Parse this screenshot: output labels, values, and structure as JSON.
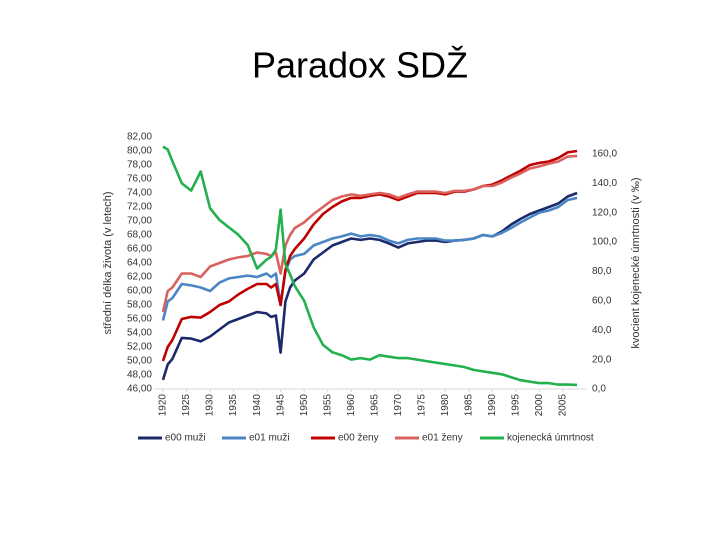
{
  "title": "Paradox SDŽ",
  "chart_data": {
    "type": "line",
    "ylabel": "střední délka života (v letech)",
    "y2label": "kvocient kojenecké úmrtnosti (v ‰)",
    "x": [
      1920,
      1921,
      1922,
      1924,
      1926,
      1928,
      1930,
      1932,
      1934,
      1936,
      1938,
      1940,
      1942,
      1943,
      1944,
      1945,
      1946,
      1947,
      1948,
      1950,
      1952,
      1954,
      1956,
      1958,
      1960,
      1962,
      1964,
      1966,
      1968,
      1970,
      1972,
      1974,
      1976,
      1978,
      1980,
      1982,
      1984,
      1986,
      1988,
      1990,
      1992,
      1994,
      1996,
      1998,
      2000,
      2002,
      2004,
      2006,
      2008
    ],
    "xlim": [
      1918,
      2010
    ],
    "xticks": [
      1920,
      1925,
      1930,
      1935,
      1940,
      1945,
      1950,
      1955,
      1960,
      1965,
      1970,
      1975,
      1980,
      1985,
      1990,
      1995,
      2000,
      2005
    ],
    "ylim": [
      46,
      82
    ],
    "yticks": [
      {
        "value": 46,
        "label": "46,00"
      },
      {
        "value": 48,
        "label": "48,00"
      },
      {
        "value": 50,
        "label": "50,00"
      },
      {
        "value": 52,
        "label": "52,00"
      },
      {
        "value": 54,
        "label": "54,00"
      },
      {
        "value": 56,
        "label": "56,00"
      },
      {
        "value": 58,
        "label": "58,00"
      },
      {
        "value": 60,
        "label": "60,00"
      },
      {
        "value": 62,
        "label": "62,00"
      },
      {
        "value": 64,
        "label": "64,00"
      },
      {
        "value": 66,
        "label": "66,00"
      },
      {
        "value": 68,
        "label": "68,00"
      },
      {
        "value": 70,
        "label": "70,00"
      },
      {
        "value": 72,
        "label": "72,00"
      },
      {
        "value": 74,
        "label": "74,00"
      },
      {
        "value": 76,
        "label": "76,00"
      },
      {
        "value": 78,
        "label": "78,00"
      },
      {
        "value": 80,
        "label": "80,00"
      },
      {
        "value": 82,
        "label": "82,00"
      }
    ],
    "y2lim": [
      0,
      171.5
    ],
    "y2ticks": [
      {
        "value": 0,
        "label": "0,0"
      },
      {
        "value": 20,
        "label": "20,0"
      },
      {
        "value": 40,
        "label": "40,0"
      },
      {
        "value": 60,
        "label": "60,0"
      },
      {
        "value": 80,
        "label": "80,0"
      },
      {
        "value": 100,
        "label": "100,0"
      },
      {
        "value": 120,
        "label": "120,0"
      },
      {
        "value": 140,
        "label": "140,0"
      },
      {
        "value": 160,
        "label": "160,0"
      }
    ],
    "grid": false,
    "legend": "bottom",
    "series": [
      {
        "name": "e00 muži",
        "color": "#1b2a6b",
        "values": [
          47.3,
          49.5,
          50.3,
          53.3,
          53.2,
          52.8,
          53.5,
          54.5,
          55.5,
          56.0,
          56.5,
          57.0,
          56.8,
          56.3,
          56.5,
          51.2,
          58.5,
          60.5,
          61.5,
          62.5,
          64.5,
          65.5,
          66.5,
          67.0,
          67.5,
          67.3,
          67.5,
          67.3,
          66.8,
          66.2,
          66.8,
          67.0,
          67.2,
          67.2,
          67.0,
          67.2,
          67.3,
          67.5,
          68.0,
          67.8,
          68.5,
          69.5,
          70.3,
          71.0,
          71.5,
          72.0,
          72.5,
          73.5,
          74.0
        ]
      },
      {
        "name": "e01 muži",
        "color": "#4a86c5",
        "values": [
          55.8,
          58.5,
          59.0,
          61.0,
          60.8,
          60.5,
          60.0,
          61.2,
          61.8,
          62.0,
          62.2,
          62.0,
          62.5,
          62.0,
          62.5,
          58.0,
          62.8,
          64.5,
          65.0,
          65.3,
          66.5,
          67.0,
          67.5,
          67.8,
          68.2,
          67.8,
          68.0,
          67.8,
          67.2,
          66.8,
          67.3,
          67.5,
          67.5,
          67.5,
          67.2,
          67.2,
          67.3,
          67.5,
          68.0,
          67.8,
          68.3,
          69.0,
          69.8,
          70.5,
          71.2,
          71.5,
          72.0,
          73.0,
          73.3
        ]
      },
      {
        "name": "e00 ženy",
        "color": "#c00000",
        "values": [
          50.0,
          52.0,
          53.0,
          56.0,
          56.3,
          56.2,
          57.0,
          58.0,
          58.5,
          59.5,
          60.3,
          61.0,
          61.0,
          60.5,
          61.0,
          58.0,
          63.0,
          65.0,
          66.0,
          67.5,
          69.5,
          71.0,
          72.0,
          72.8,
          73.3,
          73.3,
          73.6,
          73.8,
          73.5,
          73.0,
          73.5,
          74.0,
          74.0,
          74.0,
          73.8,
          74.2,
          74.2,
          74.5,
          75.0,
          75.2,
          75.8,
          76.5,
          77.2,
          78.0,
          78.3,
          78.5,
          79.0,
          79.8,
          80.0
        ]
      },
      {
        "name": "e01 ženy",
        "color": "#d9625f",
        "values": [
          57.0,
          60.0,
          60.5,
          62.5,
          62.5,
          62.0,
          63.5,
          64.0,
          64.5,
          64.8,
          65.0,
          65.5,
          65.3,
          65.0,
          65.5,
          62.5,
          66.5,
          68.0,
          69.0,
          69.8,
          71.0,
          72.0,
          73.0,
          73.5,
          73.8,
          73.6,
          73.8,
          74.0,
          73.8,
          73.3,
          73.8,
          74.2,
          74.2,
          74.2,
          74.0,
          74.3,
          74.3,
          74.5,
          75.0,
          75.0,
          75.5,
          76.2,
          76.8,
          77.5,
          77.8,
          78.2,
          78.5,
          79.2,
          79.3
        ]
      },
      {
        "name": "kojenecká úmrtnost",
        "color": "#22b14c",
        "axis": "y2",
        "values": [
          165,
          163,
          155,
          140,
          135,
          148,
          123,
          115,
          110,
          105,
          98,
          82,
          88,
          90,
          95,
          122,
          85,
          78,
          70,
          60,
          42,
          30,
          25,
          23,
          20,
          21,
          20,
          23,
          22,
          21,
          21,
          20,
          19,
          18,
          17,
          16,
          15,
          13,
          12,
          11,
          10,
          8,
          6,
          5,
          4,
          4,
          3,
          3,
          2.8
        ]
      }
    ]
  }
}
